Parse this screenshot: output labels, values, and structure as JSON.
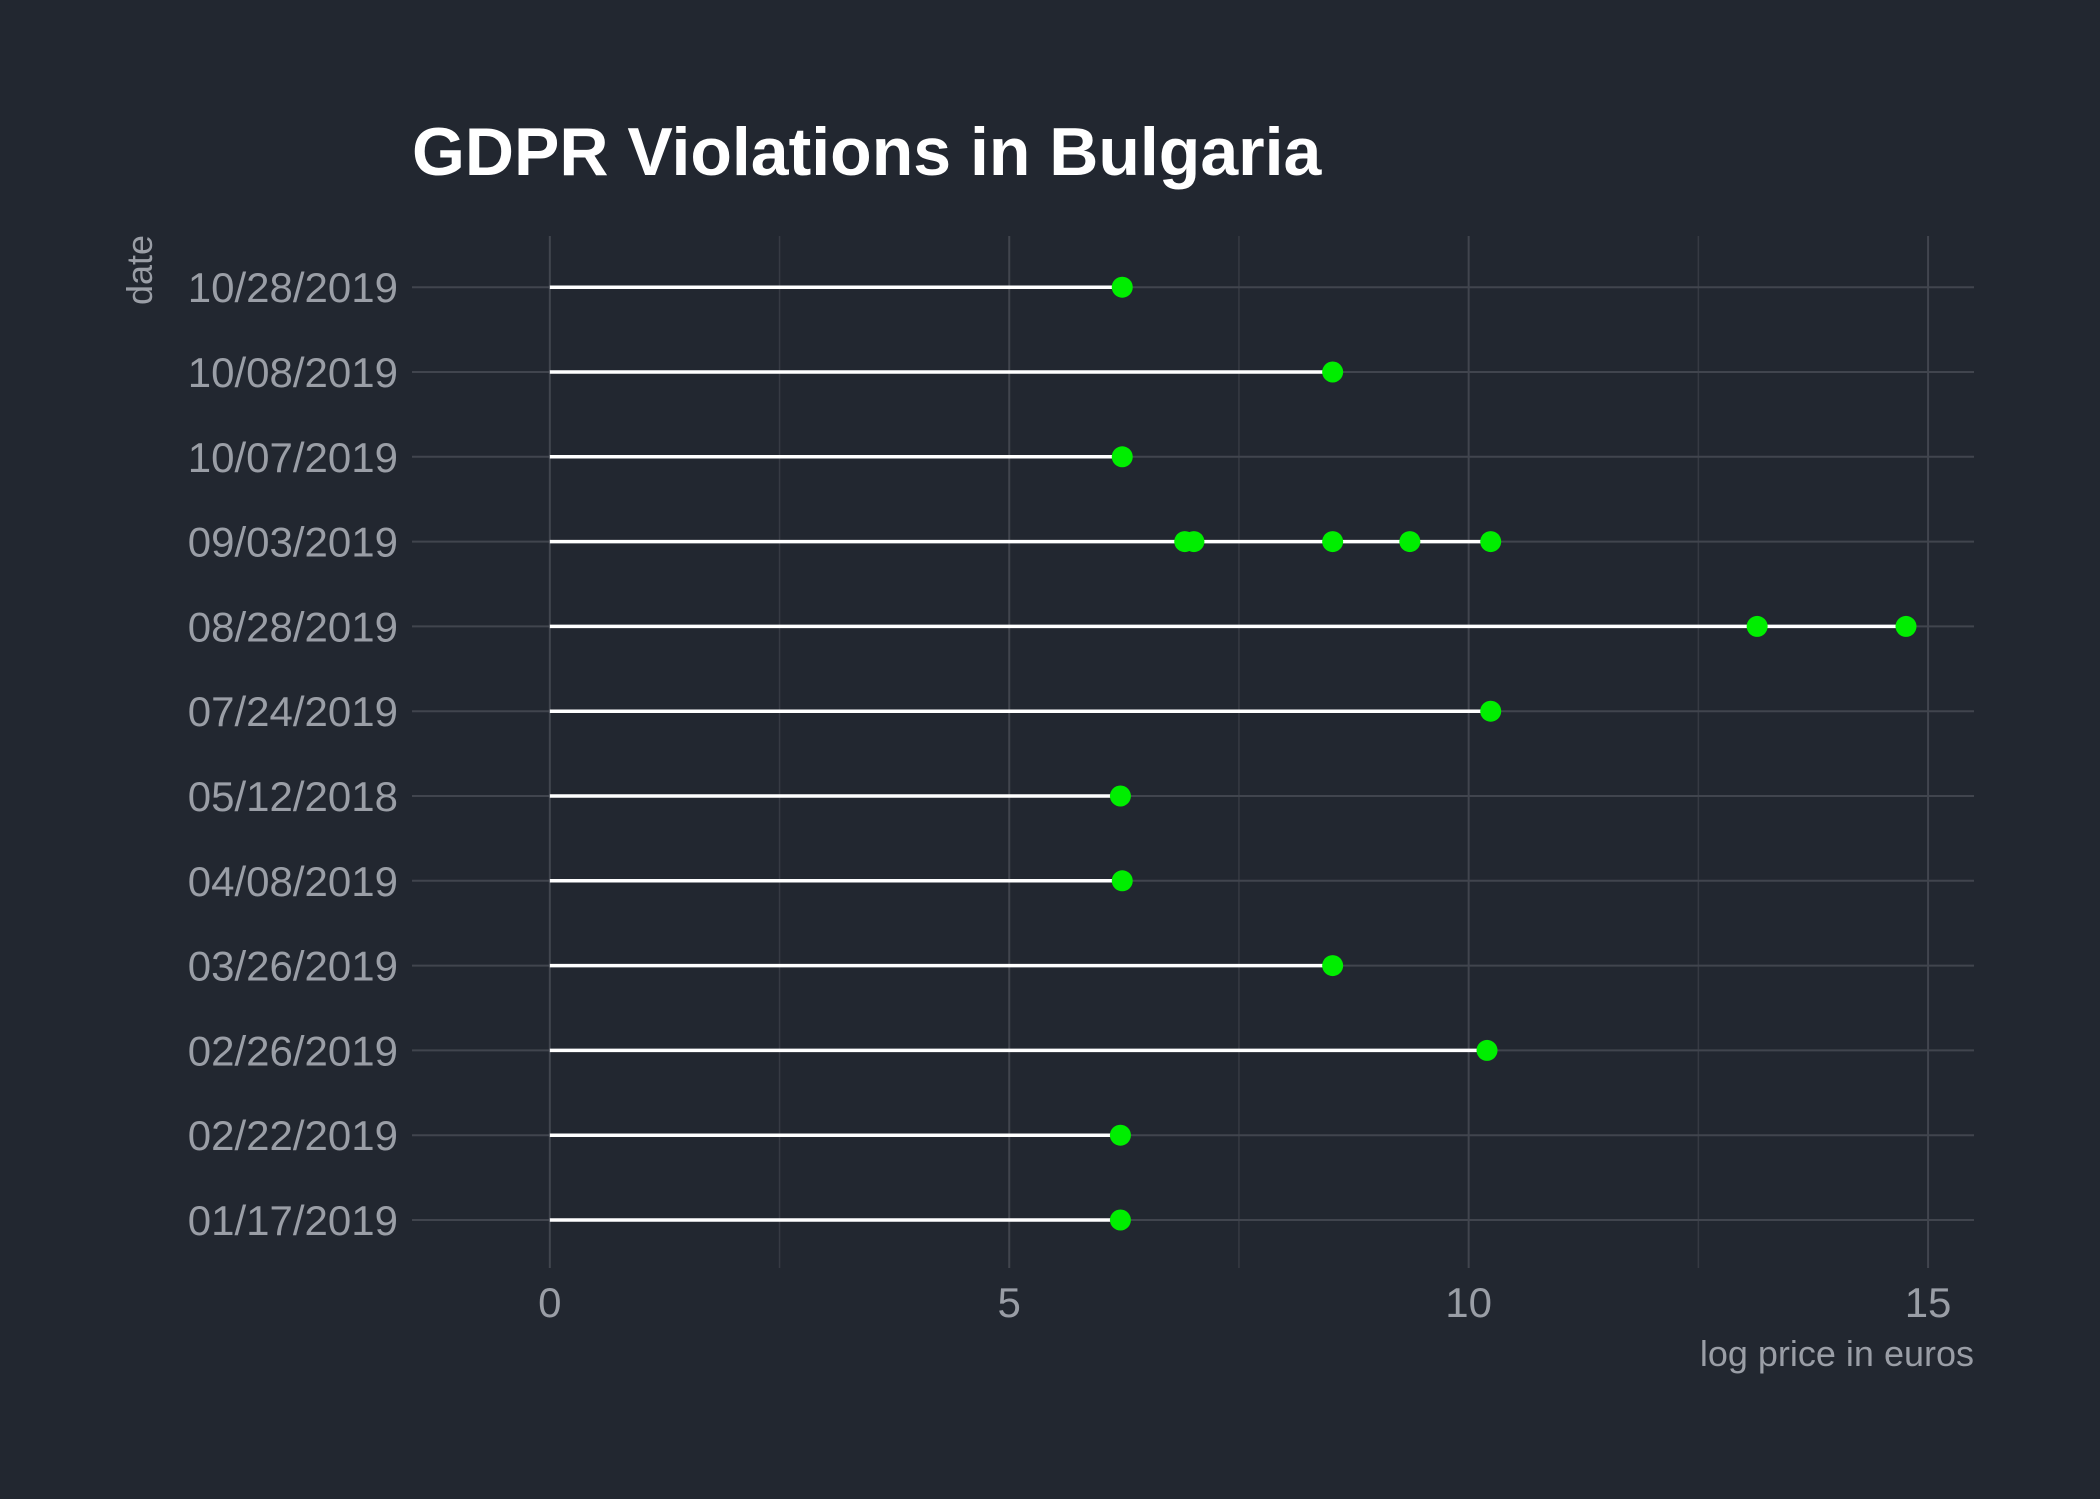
{
  "chart_data": {
    "type": "lollipop",
    "title": "GDPR Violations in Bulgaria",
    "xlabel": "log price in euros",
    "ylabel": "date",
    "xlim": [
      -1.5,
      15.5
    ],
    "x_ticks": [
      0,
      5,
      10,
      15
    ],
    "grid": true,
    "categories": [
      "01/17/2019",
      "02/22/2019",
      "02/26/2019",
      "03/26/2019",
      "04/08/2019",
      "05/12/2018",
      "07/24/2019",
      "08/28/2019",
      "09/03/2019",
      "10/07/2019",
      "10/08/2019",
      "10/28/2019"
    ],
    "points": [
      {
        "date": "10/28/2019",
        "value": 6.23
      },
      {
        "date": "10/08/2019",
        "value": 8.52
      },
      {
        "date": "10/07/2019",
        "value": 6.23
      },
      {
        "date": "09/03/2019",
        "value": 6.91
      },
      {
        "date": "09/03/2019",
        "value": 7.01
      },
      {
        "date": "09/03/2019",
        "value": 8.52
      },
      {
        "date": "09/03/2019",
        "value": 9.36
      },
      {
        "date": "09/03/2019",
        "value": 10.24
      },
      {
        "date": "08/28/2019",
        "value": 13.14
      },
      {
        "date": "08/28/2019",
        "value": 14.76
      },
      {
        "date": "07/24/2019",
        "value": 10.24
      },
      {
        "date": "05/12/2018",
        "value": 6.21
      },
      {
        "date": "04/08/2019",
        "value": 6.23
      },
      {
        "date": "03/26/2019",
        "value": 8.52
      },
      {
        "date": "02/26/2019",
        "value": 10.2
      },
      {
        "date": "02/22/2019",
        "value": 6.21
      },
      {
        "date": "01/17/2019",
        "value": 6.21
      }
    ],
    "colors": {
      "background": "#222730",
      "point": "#00ee00",
      "segment": "#ffffff"
    }
  }
}
